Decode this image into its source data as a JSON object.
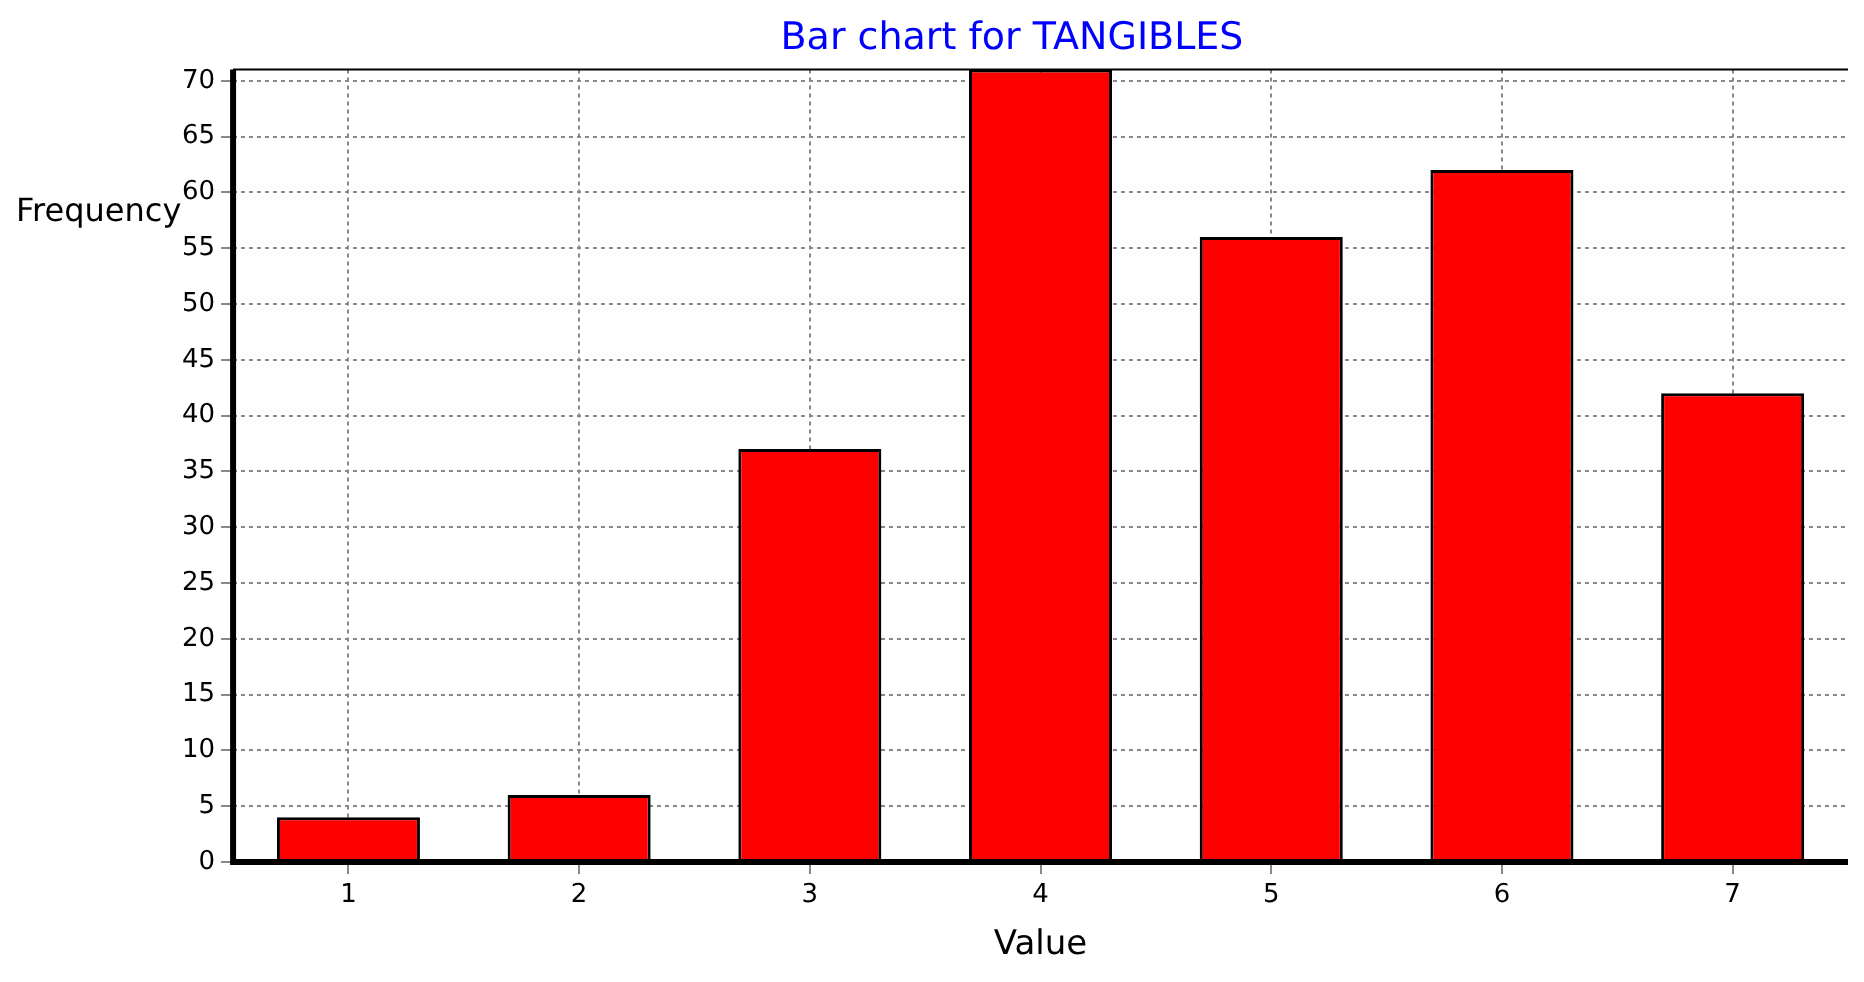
{
  "chart_data": {
    "type": "bar",
    "title": "Bar chart for TANGIBLES",
    "xlabel": "Value",
    "ylabel": "Frequency",
    "categories": [
      "1",
      "2",
      "3",
      "4",
      "5",
      "6",
      "7"
    ],
    "values": [
      4,
      6,
      37,
      71,
      56,
      62,
      42
    ],
    "color": "#ff0000",
    "ylim": [
      0,
      71
    ],
    "yticks": [
      0,
      5,
      10,
      15,
      20,
      25,
      30,
      35,
      40,
      45,
      50,
      55,
      60,
      65,
      70
    ],
    "grid": true
  }
}
